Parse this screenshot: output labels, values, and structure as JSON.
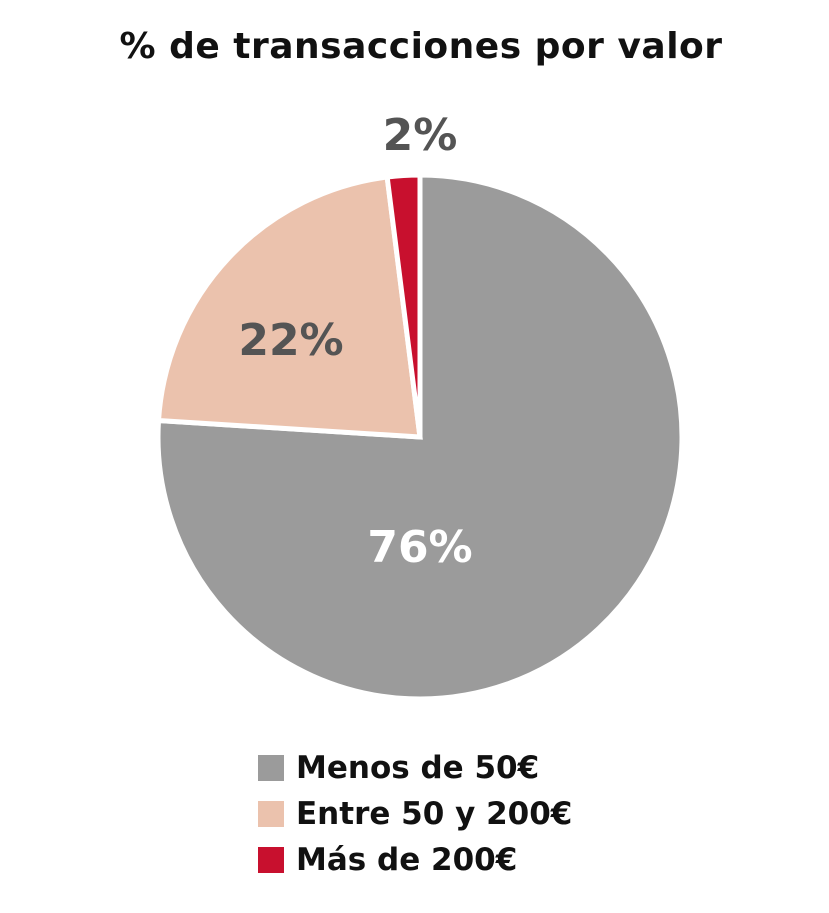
{
  "chart_data": {
    "type": "pie",
    "title": "% de transacciones por valor",
    "categories": [
      "Menos de 50€",
      "Entre 50 y 200€",
      "Más de 200€"
    ],
    "values": [
      76,
      22,
      2
    ],
    "labels": [
      "76%",
      "22%",
      "2%"
    ],
    "colors": [
      "#9b9b9b",
      "#ebc2ad",
      "#c8102e"
    ],
    "label_colors": [
      "#ffffff",
      "#545454",
      "#545454"
    ],
    "start_angle_deg": 0,
    "direction": "clockwise",
    "legend_position": "bottom"
  },
  "legend": [
    {
      "label": "Menos de 50€",
      "color": "#9b9b9b"
    },
    {
      "label": "Entre 50 y 200€",
      "color": "#ebc2ad"
    },
    {
      "label": "Más de 200€",
      "color": "#c8102e"
    }
  ]
}
